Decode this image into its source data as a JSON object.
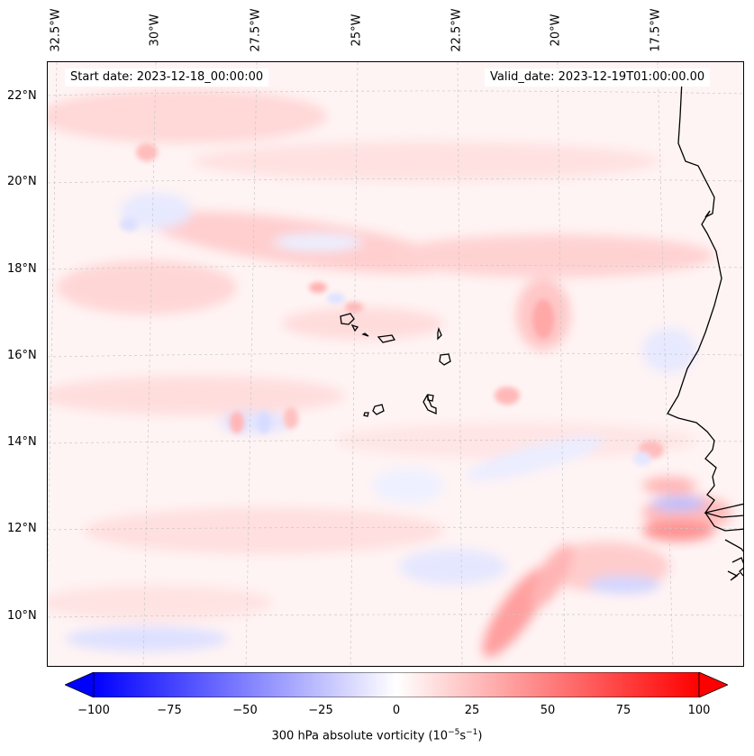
{
  "map": {
    "top_longitude_labels": [
      "32.5°W",
      "30°W",
      "27.5°W",
      "25°W",
      "22.5°W",
      "20°W",
      "17.5°W"
    ],
    "left_latitude_labels": [
      "22°N",
      "20°N",
      "18°N",
      "16°N",
      "14°N",
      "12°N",
      "10°N"
    ],
    "start_date_text": "Start date: 2023-12-18_00:00:00",
    "valid_date_text": "Valid_date: 2023-12-19T01:00:00.00",
    "field": "300 hPa absolute vorticity",
    "colormap": "bwr",
    "colors": {
      "min": "#0000ff",
      "mid": "#ffffff",
      "max": "#ff0000",
      "coastline": "#000000",
      "gridline": "#c8c8c8"
    }
  },
  "colorbar": {
    "min": -100,
    "max": 100,
    "tick_labels": [
      "−100",
      "−75",
      "−50",
      "−25",
      "0",
      "25",
      "50",
      "75",
      "100"
    ],
    "label_main": "300 hPa absolute vorticity (10",
    "label_sup1": "−5",
    "label_mid": "s",
    "label_sup2": "−1",
    "label_end": ")",
    "extend": "both"
  }
}
